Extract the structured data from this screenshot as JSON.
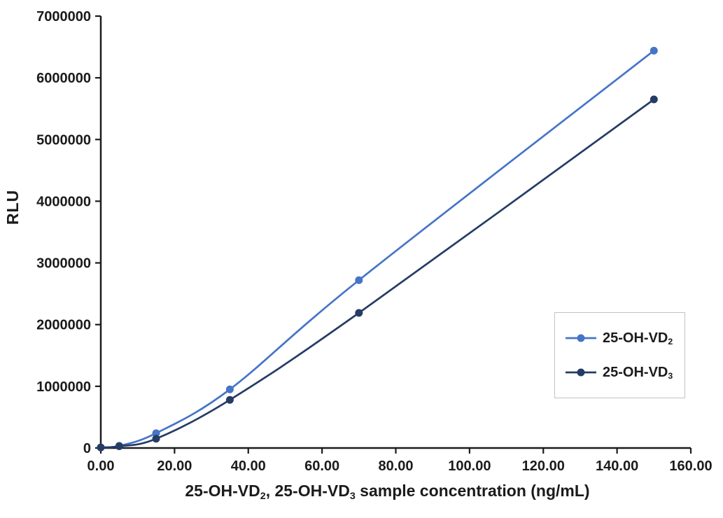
{
  "colors": {
    "background": "#ffffff",
    "axis": "#1b1b1b",
    "text": "#1b1b1b",
    "legend_border": "#c3c3c3",
    "series_vd2": "#4674C8",
    "series_vd3": "#253C64"
  },
  "y_axis_title": "RLU",
  "x_axis_title_plain": "25-OH-VD₂、 25-OH-VD₃ sample concentration (ng/mL)",
  "x_axis_title_segments": [
    {
      "text": "25-OH-VD"
    },
    {
      "text": "2",
      "sub": true
    },
    {
      "text": "、 25-OH-VD"
    },
    {
      "text": "3",
      "sub": true
    },
    {
      "text": " sample concentration (ng/mL)"
    }
  ],
  "chart_data": {
    "type": "line",
    "title": "",
    "xlabel": "25-OH-VD₂、 25-OH-VD₃ sample concentration (ng/mL)",
    "ylabel": "RLU",
    "grid": false,
    "smooth": true,
    "legend_position": "right-middle",
    "x_axis": {
      "min": 0,
      "max": 160,
      "step": 20,
      "tick_labels": [
        "0.00",
        "20.00",
        "40.00",
        "60.00",
        "80.00",
        "100.00",
        "120.00",
        "140.00",
        "160.00"
      ]
    },
    "y_axis": {
      "min": 0,
      "max": 7000000,
      "step": 1000000,
      "tick_labels": [
        "0",
        "1000000",
        "2000000",
        "3000000",
        "4000000",
        "5000000",
        "6000000",
        "7000000"
      ]
    },
    "x": [
      0,
      5,
      15,
      35,
      70,
      150
    ],
    "series": [
      {
        "name": "25-OH-VD₂",
        "name_base": "25-OH-VD",
        "name_sub": "2",
        "color": "#4674C8",
        "values": [
          10000,
          35000,
          240000,
          950000,
          2720000,
          6440000
        ]
      },
      {
        "name": "25-OH-VD₃",
        "name_base": "25-OH-VD",
        "name_sub": "3",
        "color": "#253C64",
        "values": [
          8000,
          28000,
          150000,
          780000,
          2190000,
          5650000
        ]
      }
    ]
  }
}
